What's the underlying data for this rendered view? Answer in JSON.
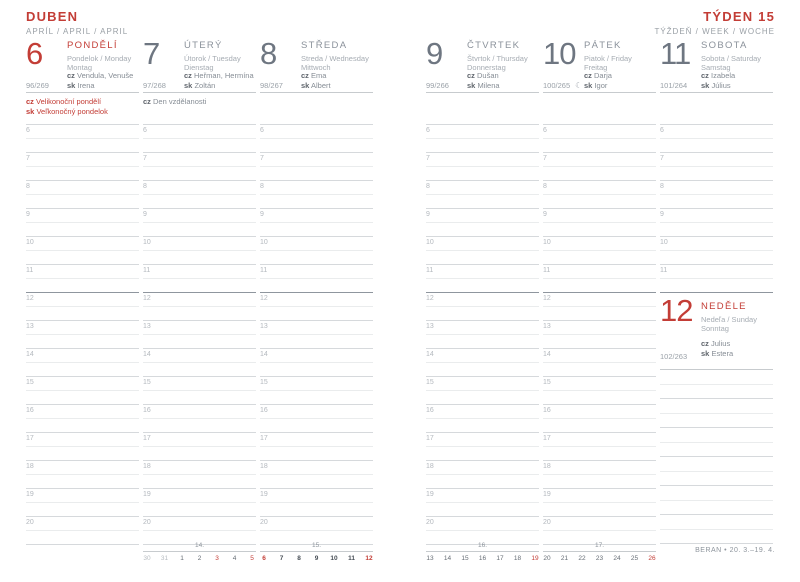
{
  "colors": {
    "accent_red": "#c33d36"
  },
  "page_header": {
    "month": "DUBEN",
    "month_sub": "APRÍL / APRIL / APRIL",
    "week": "TÝDEN 15",
    "week_sub": "TÝŽDEŇ / WEEK / WOCHE"
  },
  "days": [
    {
      "number": "6",
      "name": "PONDĚLÍ",
      "sub1": "Pondelok / Monday",
      "sub2": "Montag",
      "cz_label": "cz",
      "cz": "Vendula, Venuše",
      "sk_label": "sk",
      "sk": "Irena",
      "day_of_year": "96/269",
      "notes": [
        {
          "prefix": "cz",
          "text": "Velikonoční pondělí"
        },
        {
          "prefix": "sk",
          "text": "Veľkonočný pondelok"
        }
      ]
    },
    {
      "number": "7",
      "name": "ÚTERÝ",
      "sub1": "Útorok / Tuesday",
      "sub2": "Dienstag",
      "cz_label": "cz",
      "cz": "Heřman, Hermína",
      "sk_label": "sk",
      "sk": "Zoltán",
      "day_of_year": "97/268",
      "notes": [
        {
          "prefix": "cz",
          "text": "Den vzdělanosti"
        }
      ]
    },
    {
      "number": "8",
      "name": "STŘEDA",
      "sub1": "Streda / Wednesday",
      "sub2": "Mittwoch",
      "cz_label": "cz",
      "cz": "Ema",
      "sk_label": "sk",
      "sk": "Albert",
      "day_of_year": "98/267",
      "notes": []
    },
    {
      "number": "9",
      "name": "ČTVRTEK",
      "sub1": "Štvrtok / Thursday",
      "sub2": "Donnerstag",
      "cz_label": "cz",
      "cz": "Dušan",
      "sk_label": "sk",
      "sk": "Milena",
      "day_of_year": "99/266",
      "notes": []
    },
    {
      "number": "10",
      "name": "PÁTEK",
      "sub1": "Piatok / Friday",
      "sub2": "Freitag",
      "cz_label": "cz",
      "cz": "Darja",
      "sk_label": "sk",
      "sk": "Igor",
      "day_of_year": "100/265",
      "moon": "☾",
      "notes": []
    },
    {
      "number": "11",
      "name": "SOBOTA",
      "sub1": "Sobota / Saturday",
      "sub2": "Samstag",
      "cz_label": "cz",
      "cz": "Izabela",
      "sk_label": "sk",
      "sk": "Július",
      "day_of_year": "101/264",
      "notes": []
    }
  ],
  "sunday": {
    "number": "12",
    "name": "NEDĚLE",
    "sub1": "Nedeľa / Sunday",
    "sub2": "Sonntag",
    "cz_label": "cz",
    "cz": "Julius",
    "sk_label": "sk",
    "sk": "Estera",
    "day_of_year": "102/263"
  },
  "hours": [
    "6",
    "7",
    "8",
    "9",
    "10",
    "11",
    "12",
    "13",
    "14",
    "15",
    "16",
    "17",
    "18",
    "19",
    "20"
  ],
  "mini_weeks": [
    {
      "label": "14.",
      "dates": [
        {
          "t": "30",
          "s": "muted"
        },
        {
          "t": "31",
          "s": "muted"
        },
        {
          "t": "1",
          "s": "norm"
        },
        {
          "t": "2",
          "s": "norm"
        },
        {
          "t": "3",
          "s": "red"
        },
        {
          "t": "4",
          "s": "norm"
        },
        {
          "t": "5",
          "s": "red"
        }
      ]
    },
    {
      "label": "15.",
      "dates": [
        {
          "t": "6",
          "s": "curred"
        },
        {
          "t": "7",
          "s": "cur"
        },
        {
          "t": "8",
          "s": "cur"
        },
        {
          "t": "9",
          "s": "cur"
        },
        {
          "t": "10",
          "s": "cur"
        },
        {
          "t": "11",
          "s": "cur"
        },
        {
          "t": "12",
          "s": "curred"
        }
      ]
    },
    {
      "label": "16.",
      "dates": [
        {
          "t": "13",
          "s": "norm"
        },
        {
          "t": "14",
          "s": "norm"
        },
        {
          "t": "15",
          "s": "norm"
        },
        {
          "t": "16",
          "s": "norm"
        },
        {
          "t": "17",
          "s": "norm"
        },
        {
          "t": "18",
          "s": "norm"
        },
        {
          "t": "19",
          "s": "red"
        }
      ]
    },
    {
      "label": "17.",
      "dates": [
        {
          "t": "20",
          "s": "norm"
        },
        {
          "t": "21",
          "s": "norm"
        },
        {
          "t": "22",
          "s": "norm"
        },
        {
          "t": "23",
          "s": "norm"
        },
        {
          "t": "24",
          "s": "norm"
        },
        {
          "t": "25",
          "s": "norm"
        },
        {
          "t": "26",
          "s": "red"
        }
      ]
    }
  ],
  "zodiac": "BERAN • 20. 3.–19. 4."
}
